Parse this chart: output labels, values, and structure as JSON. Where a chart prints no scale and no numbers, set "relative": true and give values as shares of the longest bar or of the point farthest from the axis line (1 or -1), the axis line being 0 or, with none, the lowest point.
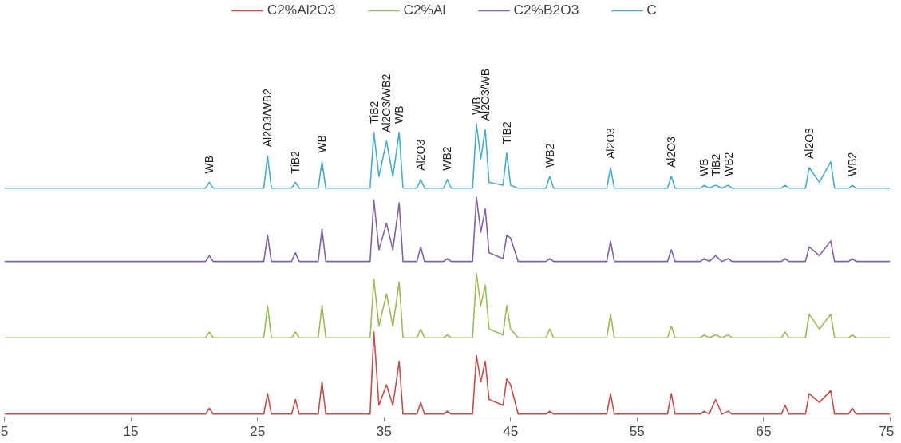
{
  "chart_data": {
    "type": "line",
    "relative": true,
    "legend": "top",
    "grid": false,
    "tick_labels": "x",
    "marker": "none",
    "line_style": "solid",
    "xlim": [
      5,
      75
    ],
    "xticks": [
      5,
      15,
      25,
      35,
      45,
      55,
      65,
      75
    ],
    "x": [
      5,
      20.9,
      21.2,
      21.5,
      25.5,
      25.8,
      26.1,
      27.7,
      28,
      28.3,
      29.8,
      30.1,
      30.4,
      33.9,
      34.2,
      34.6,
      35.2,
      35.7,
      36.2,
      36.5,
      37.6,
      37.9,
      38.2,
      39.7,
      40,
      40.3,
      42.0,
      42.3,
      42.65,
      43,
      43.3,
      44.4,
      44.7,
      45.0,
      45.6,
      47.8,
      48.1,
      48.4,
      52.6,
      52.9,
      53.2,
      57.4,
      57.7,
      58.0,
      60.0,
      60.3,
      60.7,
      61.2,
      61.7,
      62.2,
      62.5,
      66.4,
      66.7,
      67.0,
      68.3,
      68.6,
      69.4,
      70.3,
      70.6,
      71.7,
      72,
      72.3,
      75
    ],
    "series": [
      {
        "name": "C2%Al2O3",
        "color": "#c0504d",
        "values": [
          0.01,
          0.01,
          0.03,
          0.01,
          0.01,
          0.08,
          0.01,
          0.01,
          0.06,
          0.01,
          0.01,
          0.12,
          0.01,
          0.01,
          0.29,
          0.04,
          0.11,
          0.04,
          0.19,
          0.01,
          0.01,
          0.05,
          0.01,
          0.01,
          0.02,
          0.01,
          0.01,
          0.21,
          0.12,
          0.19,
          0.06,
          0.04,
          0.13,
          0.11,
          0.01,
          0.01,
          0.02,
          0.01,
          0.01,
          0.08,
          0.01,
          0.01,
          0.08,
          0.01,
          0.01,
          0.02,
          0.01,
          0.06,
          0.01,
          0.02,
          0.01,
          0.01,
          0.04,
          0.01,
          0.01,
          0.08,
          0.05,
          0.09,
          0.01,
          0.01,
          0.03,
          0.01,
          0.01
        ]
      },
      {
        "name": "C2%Al",
        "color": "#9bbb59",
        "values": [
          0.27,
          0.27,
          0.29,
          0.27,
          0.27,
          0.38,
          0.27,
          0.27,
          0.29,
          0.27,
          0.27,
          0.38,
          0.27,
          0.27,
          0.47,
          0.31,
          0.42,
          0.31,
          0.46,
          0.27,
          0.27,
          0.3,
          0.27,
          0.27,
          0.28,
          0.27,
          0.27,
          0.49,
          0.38,
          0.45,
          0.3,
          0.28,
          0.38,
          0.3,
          0.27,
          0.27,
          0.3,
          0.27,
          0.27,
          0.35,
          0.27,
          0.27,
          0.31,
          0.27,
          0.27,
          0.28,
          0.27,
          0.28,
          0.27,
          0.28,
          0.27,
          0.27,
          0.29,
          0.27,
          0.27,
          0.35,
          0.3,
          0.35,
          0.27,
          0.27,
          0.28,
          0.27,
          0.27
        ]
      },
      {
        "name": "C2%B2O3",
        "color": "#8064a2",
        "values": [
          0.53,
          0.53,
          0.55,
          0.53,
          0.53,
          0.62,
          0.53,
          0.53,
          0.56,
          0.53,
          0.53,
          0.64,
          0.53,
          0.53,
          0.74,
          0.57,
          0.66,
          0.57,
          0.73,
          0.53,
          0.53,
          0.58,
          0.53,
          0.53,
          0.54,
          0.53,
          0.53,
          0.75,
          0.63,
          0.71,
          0.56,
          0.54,
          0.62,
          0.61,
          0.53,
          0.53,
          0.54,
          0.53,
          0.53,
          0.6,
          0.53,
          0.53,
          0.57,
          0.53,
          0.53,
          0.54,
          0.53,
          0.55,
          0.53,
          0.54,
          0.53,
          0.53,
          0.54,
          0.53,
          0.53,
          0.58,
          0.55,
          0.6,
          0.53,
          0.53,
          0.54,
          0.53,
          0.53
        ]
      },
      {
        "name": "C",
        "color": "#4bacc6",
        "values": [
          0.78,
          0.78,
          0.8,
          0.78,
          0.78,
          0.89,
          0.78,
          0.78,
          0.8,
          0.78,
          0.78,
          0.87,
          0.78,
          0.78,
          0.97,
          0.82,
          0.94,
          0.82,
          0.97,
          0.78,
          0.78,
          0.81,
          0.78,
          0.78,
          0.81,
          0.78,
          0.78,
          1.0,
          0.88,
          0.98,
          0.8,
          0.79,
          0.9,
          0.79,
          0.78,
          0.78,
          0.82,
          0.78,
          0.78,
          0.85,
          0.78,
          0.78,
          0.82,
          0.78,
          0.78,
          0.79,
          0.78,
          0.79,
          0.78,
          0.79,
          0.78,
          0.78,
          0.79,
          0.78,
          0.78,
          0.85,
          0.8,
          0.87,
          0.78,
          0.78,
          0.79,
          0.78,
          0.78
        ]
      }
    ],
    "annotations": [
      {
        "text": "WB",
        "x": 21.2,
        "y": 0.8
      },
      {
        "text": "Al2O3/WB2",
        "x": 25.8,
        "y": 0.89
      },
      {
        "text": "TiB2",
        "x": 28,
        "y": 0.8
      },
      {
        "text": "WB",
        "x": 30.1,
        "y": 0.87
      },
      {
        "text": "TiB2",
        "x": 34.2,
        "y": 0.97
      },
      {
        "text": "Al2O3/WB2",
        "x": 35.2,
        "y": 0.94
      },
      {
        "text": "WB",
        "x": 36.2,
        "y": 0.97
      },
      {
        "text": "Al2O3",
        "x": 37.9,
        "y": 0.81
      },
      {
        "text": "WB2",
        "x": 40,
        "y": 0.81
      },
      {
        "text": "WB",
        "x": 42.3,
        "y": 1.0
      },
      {
        "text": "Al2O3/WB",
        "x": 43,
        "y": 0.98
      },
      {
        "text": "TiB2",
        "x": 44.7,
        "y": 0.9
      },
      {
        "text": "WB2",
        "x": 48.1,
        "y": 0.82
      },
      {
        "text": "Al2O3",
        "x": 52.9,
        "y": 0.85
      },
      {
        "text": "Al2O3",
        "x": 57.7,
        "y": 0.82
      },
      {
        "text": "WB",
        "x": 60.3,
        "y": 0.79
      },
      {
        "text": "TiB2",
        "x": 61.2,
        "y": 0.79
      },
      {
        "text": "WB2",
        "x": 62.2,
        "y": 0.79
      },
      {
        "text": "Al2O3",
        "x": 68.6,
        "y": 0.85
      },
      {
        "text": "WB2",
        "x": 72,
        "y": 0.79
      }
    ]
  }
}
